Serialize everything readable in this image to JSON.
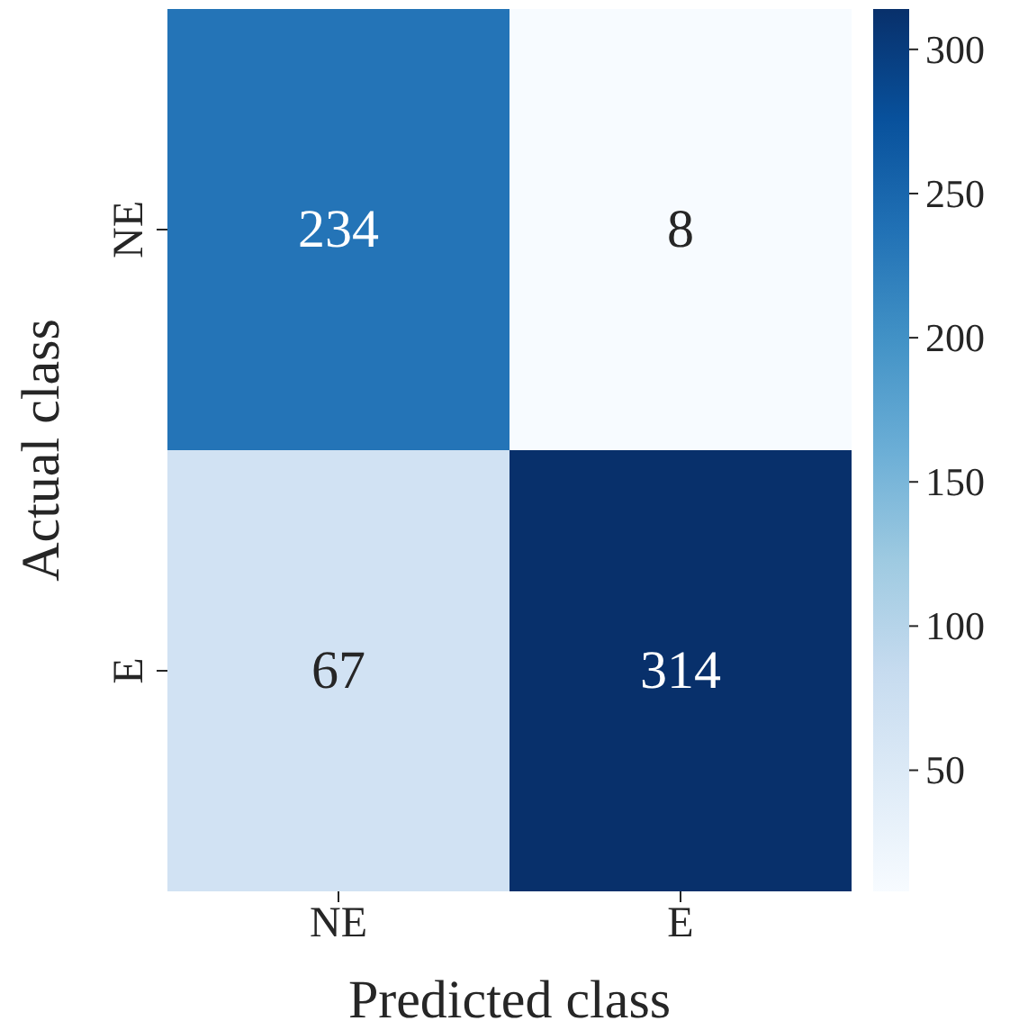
{
  "chart_data": {
    "type": "heatmap",
    "xlabel": "Predicted class",
    "ylabel": "Actual class",
    "categories": [
      "NE",
      "E"
    ],
    "y_categories": [
      "NE",
      "E"
    ],
    "cells": [
      [
        234,
        8
      ],
      [
        67,
        314
      ]
    ],
    "clim": [
      8,
      314
    ],
    "cticks": [
      50,
      100,
      150,
      200,
      250,
      300
    ],
    "data_labels": true
  }
}
